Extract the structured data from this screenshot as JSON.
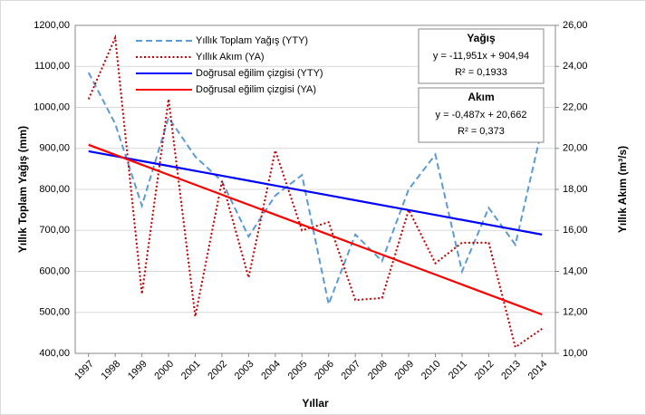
{
  "chart_data": {
    "type": "line",
    "y_label": "Yıllık Toplam Yağış (mm)",
    "y2_label": "Yıllık Akım (m³/s)",
    "x_label": "Yıllar",
    "categories": [
      "1997",
      "1998",
      "1999",
      "2000",
      "2001",
      "2002",
      "2003",
      "2004",
      "2005",
      "2006",
      "2007",
      "2008",
      "2009",
      "2010",
      "2011",
      "2012",
      "2013",
      "2014"
    ],
    "ylim": [
      400,
      1200
    ],
    "yticks": [
      {
        "value": 400,
        "label": "400,00"
      },
      {
        "value": 500,
        "label": "500,00"
      },
      {
        "value": 600,
        "label": "600,00"
      },
      {
        "value": 700,
        "label": "700,00"
      },
      {
        "value": 800,
        "label": "800,00"
      },
      {
        "value": 900,
        "label": "900,00"
      },
      {
        "value": 1000,
        "label": "1000,00"
      },
      {
        "value": 1100,
        "label": "1100,00"
      },
      {
        "value": 1200,
        "label": "1200,00"
      }
    ],
    "y2lim": [
      10,
      26
    ],
    "y2ticks": [
      {
        "value": 10,
        "label": "10,00"
      },
      {
        "value": 12,
        "label": "12,00"
      },
      {
        "value": 14,
        "label": "14,00"
      },
      {
        "value": 16,
        "label": "16,00"
      },
      {
        "value": 18,
        "label": "18,00"
      },
      {
        "value": 20,
        "label": "20,00"
      },
      {
        "value": 22,
        "label": "22,00"
      },
      {
        "value": 24,
        "label": "24,00"
      },
      {
        "value": 26,
        "label": "26,00"
      }
    ],
    "grid": true,
    "legend": "top-left",
    "series": [
      {
        "name": "Yıllık Toplam Yağış (YTY)",
        "color": "#5b9bd5",
        "dash": "dashed",
        "values": [
          1085,
          960,
          760,
          975,
          880,
          820,
          685,
          785,
          835,
          520,
          690,
          625,
          800,
          885,
          600,
          755,
          665,
          950
        ]
      },
      {
        "name": "Yıllık Akım (YA)",
        "color": "#c00000",
        "dash": "dotted",
        "axis": "y2",
        "values": [
          22.4,
          25.4,
          12.9,
          22.4,
          11.8,
          18.4,
          13.7,
          19.9,
          16.0,
          16.4,
          12.6,
          12.7,
          17.0,
          14.4,
          15.4,
          15.4,
          10.3,
          11.2
        ]
      },
      {
        "name": "Doğrusal eğilim çizgisi (YTY)",
        "color": "#0000ff",
        "dash": "solid",
        "values": [
          892.99,
          881.04,
          869.09,
          857.14,
          845.19,
          833.23,
          821.28,
          809.33,
          797.38,
          785.43,
          773.48,
          761.53,
          749.58,
          737.63,
          725.67,
          713.72,
          701.77,
          689.82
        ]
      },
      {
        "name": "Doğrusal eğilim çizgisi (YA)",
        "color": "#ff0000",
        "dash": "solid",
        "axis": "y2",
        "values": [
          20.175,
          19.688,
          19.201,
          18.714,
          18.227,
          17.74,
          17.253,
          16.766,
          16.279,
          15.792,
          15.305,
          14.818,
          14.331,
          13.844,
          13.357,
          12.87,
          12.383,
          11.896
        ]
      }
    ],
    "annotations": [
      {
        "title": "Yağış",
        "equation": "y = -11,951x + 904,94",
        "r2": "R² = 0,1933"
      },
      {
        "title": "Akım",
        "equation": "y = -0,487x + 20,662",
        "r2": "R² = 0,373"
      }
    ]
  }
}
